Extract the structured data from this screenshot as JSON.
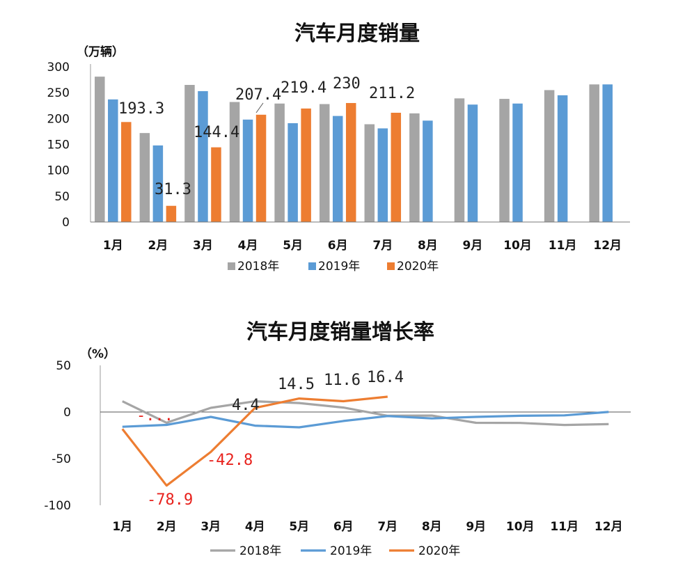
{
  "chart_data": [
    {
      "type": "bar",
      "title": "汽车月度销量",
      "unit_label": "（万辆）",
      "ylim": [
        0,
        300
      ],
      "yticks": [
        "0",
        "50",
        "100",
        "150",
        "200",
        "250",
        "300"
      ],
      "categories": [
        "1月",
        "2月",
        "3月",
        "4月",
        "5月",
        "6月",
        "7月",
        "8月",
        "9月",
        "10月",
        "11月",
        "12月"
      ],
      "legend_position": "bottom",
      "series": [
        {
          "name": "2018年",
          "color": "#a5a5a5",
          "values": [
            281,
            172,
            265,
            232,
            229,
            228,
            189,
            210,
            239,
            238,
            255,
            266
          ]
        },
        {
          "name": "2019年",
          "color": "#5b9bd5",
          "values": [
            237,
            148,
            253,
            198,
            191,
            205,
            181,
            196,
            227,
            229,
            245,
            266
          ]
        },
        {
          "name": "2020年",
          "color": "#ed7d31",
          "values": [
            193.3,
            31.3,
            144.4,
            207.4,
            219.4,
            230,
            211.2,
            null,
            null,
            null,
            null,
            null
          ]
        }
      ],
      "data_labels": [
        "193.3",
        "31.3",
        "144.4",
        "207.4",
        "219.4",
        "230",
        "211.2"
      ]
    },
    {
      "type": "line",
      "title": "汽车月度销量增长率",
      "unit_label": "（%）",
      "ylim": [
        -100,
        50
      ],
      "yticks": [
        "50",
        "0",
        "-50",
        "-100"
      ],
      "categories": [
        "1月",
        "2月",
        "3月",
        "4月",
        "5月",
        "6月",
        "7月",
        "8月",
        "9月",
        "10月",
        "11月",
        "12月"
      ],
      "legend_position": "bottom",
      "series": [
        {
          "name": "2018年",
          "color": "#a5a5a5",
          "values": [
            11.5,
            -11.5,
            4.5,
            11.5,
            9.6,
            4.8,
            -4.0,
            -3.8,
            -11.6,
            -11.7,
            -13.9,
            -13.0
          ]
        },
        {
          "name": "2019年",
          "color": "#5b9bd5",
          "values": [
            -15.8,
            -13.8,
            -5.2,
            -14.6,
            -16.4,
            -9.6,
            -4.3,
            -6.9,
            -5.2,
            -4.0,
            -3.6,
            0.1
          ]
        },
        {
          "name": "2020年",
          "color": "#ed7d31",
          "values": [
            -18.2,
            -78.9,
            -42.8,
            4.4,
            14.5,
            11.6,
            16.4,
            null,
            null,
            null,
            null,
            null
          ]
        }
      ],
      "data_labels": [
        "-...",
        "-78.9",
        "-42.8",
        "4.4",
        "14.5",
        "11.6",
        "16.4"
      ]
    }
  ]
}
